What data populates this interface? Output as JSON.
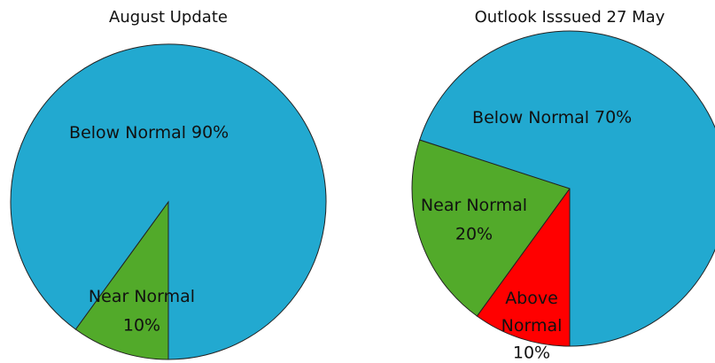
{
  "chart_data": [
    {
      "type": "pie",
      "title": "August Update",
      "categories": [
        "Near Normal",
        "Below Normal"
      ],
      "values": [
        10,
        90
      ],
      "value_labels": [
        "10%",
        "90%"
      ],
      "colors": [
        "#52aa2a",
        "#22a9d0"
      ]
    },
    {
      "type": "pie",
      "title": "Outlook Isssued 27 May",
      "categories": [
        "Above Normal",
        "Near Normal",
        "Below Normal"
      ],
      "values": [
        10,
        20,
        70
      ],
      "value_labels": [
        "10%",
        "20%",
        "70%"
      ],
      "colors": [
        "#ff0000",
        "#52aa2a",
        "#22a9d0"
      ]
    }
  ]
}
